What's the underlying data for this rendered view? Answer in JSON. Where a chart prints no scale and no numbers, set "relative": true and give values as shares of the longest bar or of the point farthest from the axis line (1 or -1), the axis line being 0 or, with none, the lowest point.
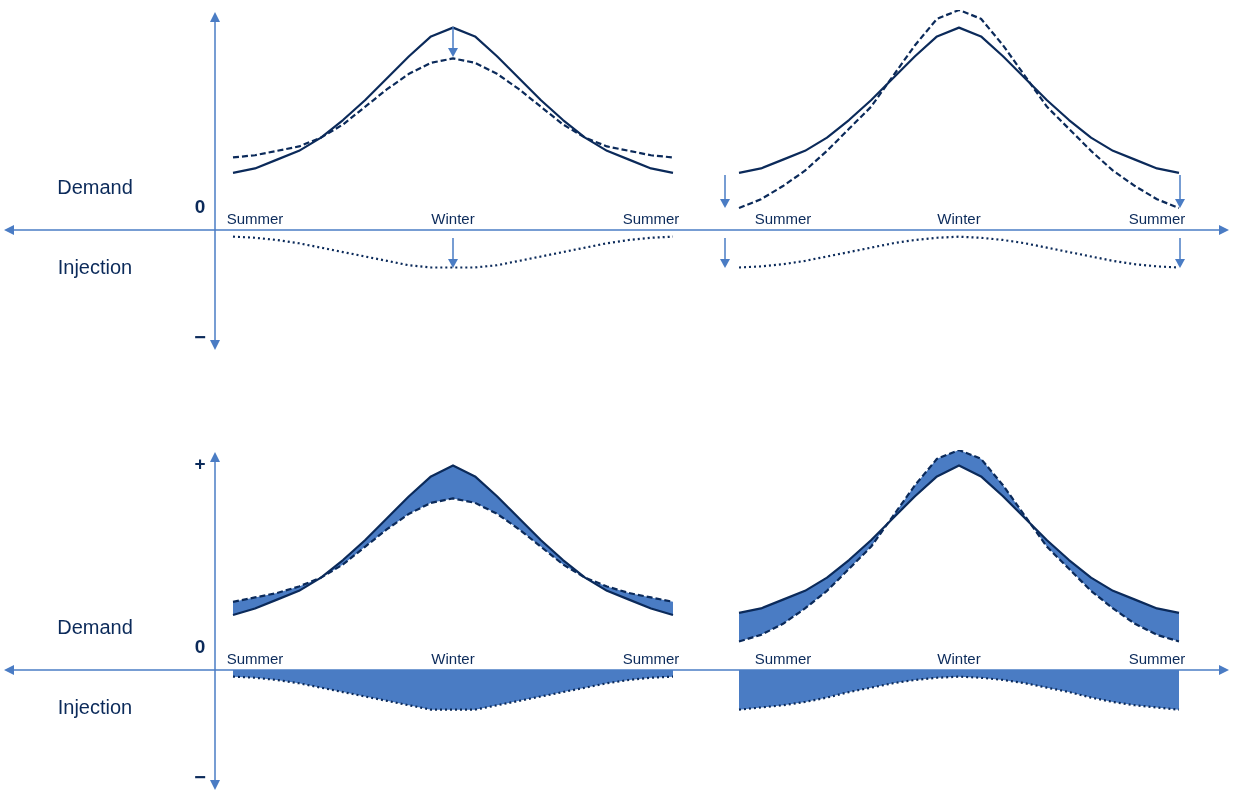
{
  "chart_data": [
    {
      "type": "line",
      "relative": true,
      "categories": [
        null,
        "Summer",
        null,
        null,
        null,
        null,
        null,
        null,
        null,
        null,
        "Winter",
        null,
        null,
        null,
        null,
        null,
        null,
        null,
        null,
        "Summer",
        null,
        null,
        null,
        null,
        null,
        "Summer",
        null,
        null,
        null,
        null,
        null,
        null,
        null,
        "Winter",
        null,
        null,
        null,
        null,
        null,
        null,
        null,
        null,
        "Summer",
        null
      ],
      "annotations": [
        "Demand",
        "Injection",
        "0",
        "−"
      ],
      "series": [
        {
          "color": "#0b2a5a",
          "line_style": "solid",
          "values": [
            0.26,
            0.28,
            0.32,
            0.36,
            0.42,
            0.5,
            0.59,
            0.69,
            0.79,
            0.88,
            0.92,
            0.88,
            0.79,
            0.69,
            0.59,
            0.5,
            0.42,
            0.36,
            0.32,
            0.28,
            0.26,
            null,
            null,
            0.26,
            0.28,
            0.32,
            0.36,
            0.42,
            0.5,
            0.59,
            0.69,
            0.79,
            0.88,
            0.92,
            0.88,
            0.79,
            0.69,
            0.59,
            0.5,
            0.42,
            0.36,
            0.32,
            0.28,
            0.26
          ]
        },
        {
          "color": "#0b2a5a",
          "line_style": "dashed",
          "values": [
            0.33,
            0.34,
            0.36,
            0.38,
            0.42,
            0.48,
            0.56,
            0.64,
            0.71,
            0.76,
            0.78,
            0.76,
            0.71,
            0.64,
            0.56,
            0.48,
            0.42,
            0.38,
            0.36,
            0.34,
            0.33,
            null,
            null,
            0.1,
            0.14,
            0.2,
            0.27,
            0.36,
            0.46,
            0.56,
            0.7,
            0.84,
            0.96,
            1,
            0.96,
            0.84,
            0.7,
            0.56,
            0.46,
            0.36,
            0.27,
            0.2,
            0.14,
            0.1
          ]
        },
        {
          "color": "#0b2a5a",
          "line_style": "dotted",
          "values": [
            -0.03,
            -0.035,
            -0.045,
            -0.06,
            -0.08,
            -0.1,
            -0.12,
            -0.14,
            -0.16,
            -0.17,
            -0.17,
            -0.17,
            -0.16,
            -0.14,
            -0.12,
            -0.1,
            -0.08,
            -0.06,
            -0.045,
            -0.035,
            -0.03,
            null,
            null,
            -0.17,
            -0.165,
            -0.155,
            -0.14,
            -0.12,
            -0.1,
            -0.08,
            -0.06,
            -0.045,
            -0.035,
            -0.03,
            -0.035,
            -0.045,
            -0.06,
            -0.08,
            -0.1,
            -0.12,
            -0.14,
            -0.155,
            -0.165,
            -0.17
          ]
        }
      ]
    },
    {
      "type": "line",
      "relative": true,
      "categories": [
        null,
        "Summer",
        null,
        null,
        null,
        null,
        null,
        null,
        null,
        null,
        "Winter",
        null,
        null,
        null,
        null,
        null,
        null,
        null,
        null,
        "Summer",
        null,
        null,
        null,
        null,
        null,
        "Summer",
        null,
        null,
        null,
        null,
        null,
        null,
        null,
        "Winter",
        null,
        null,
        null,
        null,
        null,
        null,
        null,
        null,
        "Summer",
        null
      ],
      "annotations": [
        "Demand",
        "Injection",
        "0",
        "−",
        "+"
      ],
      "series": [
        {
          "color": "#0b2a5a",
          "line_style": "solid",
          "values": [
            0.25,
            0.28,
            0.32,
            0.36,
            0.42,
            0.5,
            0.59,
            0.69,
            0.79,
            0.88,
            0.93,
            0.88,
            0.79,
            0.69,
            0.59,
            0.5,
            0.42,
            0.36,
            0.32,
            0.28,
            0.25,
            null,
            null,
            0.26,
            0.28,
            0.32,
            0.36,
            0.42,
            0.5,
            0.59,
            0.69,
            0.79,
            0.88,
            0.93,
            0.88,
            0.79,
            0.69,
            0.59,
            0.5,
            0.42,
            0.36,
            0.32,
            0.28,
            0.26
          ],
          "lower": [
            0.31,
            0.33,
            0.35,
            0.38,
            0.42,
            0.48,
            0.56,
            0.64,
            0.71,
            0.76,
            0.78,
            0.76,
            0.71,
            0.64,
            0.56,
            0.48,
            0.42,
            0.38,
            0.35,
            0.33,
            0.31,
            null,
            null,
            0.13,
            0.16,
            0.21,
            0.28,
            0.36,
            0.46,
            0.56,
            0.7,
            0.84,
            0.96,
            1,
            0.96,
            0.84,
            0.7,
            0.56,
            0.46,
            0.36,
            0.28,
            0.21,
            0.16,
            0.13
          ],
          "upper": [
            0.25,
            0.28,
            0.32,
            0.36,
            0.42,
            0.5,
            0.59,
            0.69,
            0.79,
            0.88,
            0.93,
            0.88,
            0.79,
            0.69,
            0.59,
            0.5,
            0.42,
            0.36,
            0.32,
            0.28,
            0.25,
            null,
            null,
            0.26,
            0.28,
            0.32,
            0.36,
            0.42,
            0.5,
            0.59,
            0.69,
            0.79,
            0.88,
            0.93,
            0.88,
            0.79,
            0.69,
            0.59,
            0.5,
            0.42,
            0.36,
            0.32,
            0.28,
            0.26
          ]
        },
        {
          "color": "#0b2a5a",
          "line_style": "dashed",
          "values": [
            0.31,
            0.33,
            0.35,
            0.38,
            0.42,
            0.48,
            0.56,
            0.64,
            0.71,
            0.76,
            0.78,
            0.76,
            0.71,
            0.64,
            0.56,
            0.48,
            0.42,
            0.38,
            0.35,
            0.33,
            0.31,
            null,
            null,
            0.13,
            0.16,
            0.21,
            0.28,
            0.36,
            0.46,
            0.56,
            0.7,
            0.84,
            0.96,
            1,
            0.96,
            0.84,
            0.7,
            0.56,
            0.46,
            0.36,
            0.28,
            0.21,
            0.16,
            0.13
          ]
        },
        {
          "type": "area",
          "color": "#0b2a5a",
          "line_style": "dotted",
          "values": [
            -0.03,
            -0.035,
            -0.045,
            -0.06,
            -0.08,
            -0.1,
            -0.12,
            -0.14,
            -0.16,
            -0.18,
            -0.18,
            -0.18,
            -0.16,
            -0.14,
            -0.12,
            -0.1,
            -0.08,
            -0.06,
            -0.045,
            -0.035,
            -0.03,
            null,
            null,
            -0.18,
            -0.17,
            -0.16,
            -0.145,
            -0.125,
            -0.1,
            -0.08,
            -0.06,
            -0.045,
            -0.035,
            -0.03,
            -0.035,
            -0.045,
            -0.06,
            -0.08,
            -0.1,
            -0.125,
            -0.145,
            -0.16,
            -0.17,
            -0.18
          ]
        }
      ]
    }
  ]
}
